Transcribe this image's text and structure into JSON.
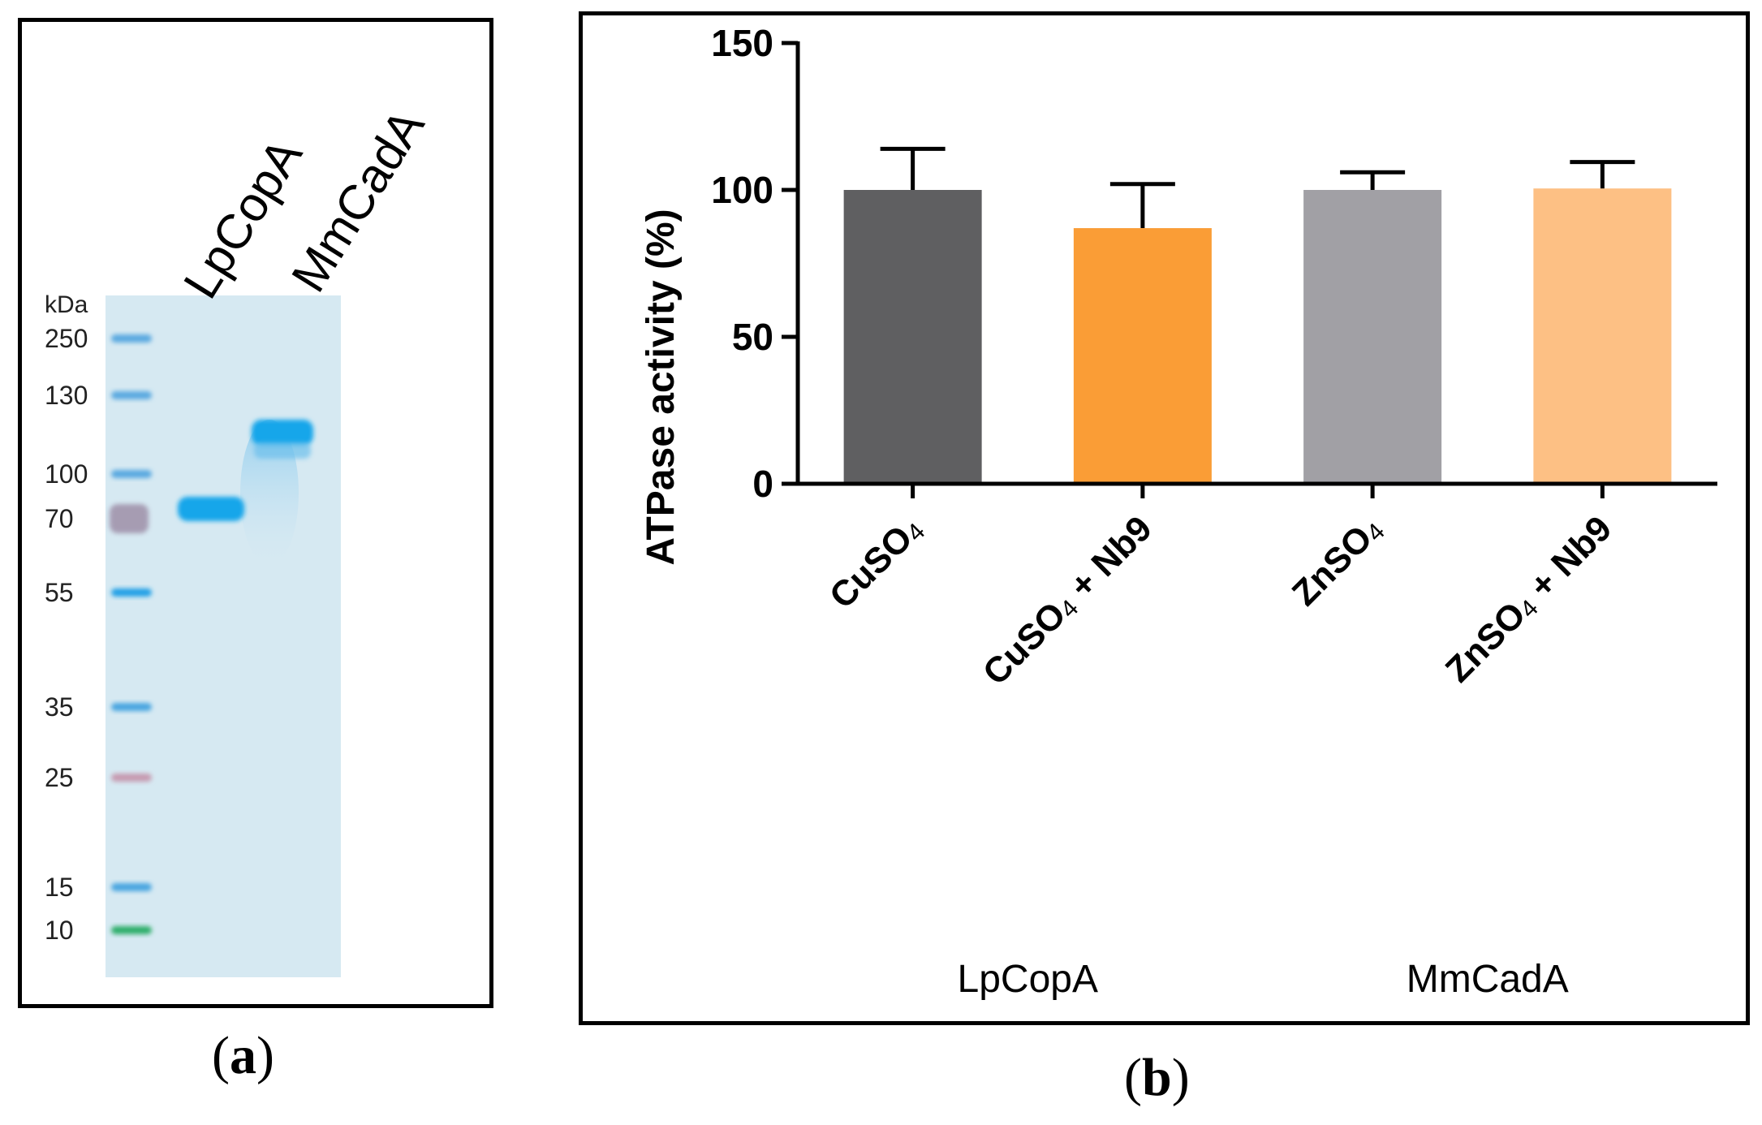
{
  "panel_a": {
    "caption_open": "(",
    "caption_letter": "a",
    "caption_close": ")",
    "lane_labels": [
      "LpCopA",
      "MmCadA"
    ],
    "ladder_unit": "kDa",
    "ladder_markers": [
      {
        "label": "250",
        "color": "#5aa9e0"
      },
      {
        "label": "130",
        "color": "#5aa9e0"
      },
      {
        "label": "100",
        "color": "#5aa9e0"
      },
      {
        "label": "70",
        "color": "#9e8fa8"
      },
      {
        "label": "55",
        "color": "#20a0e6"
      },
      {
        "label": "35",
        "color": "#4aa6e0"
      },
      {
        "label": "25",
        "color": "#c69ab0"
      },
      {
        "label": "15",
        "color": "#4aa6e0"
      },
      {
        "label": "10",
        "color": "#2fae6a"
      }
    ],
    "gel_background": "#d6e9f2",
    "band_color": "#12a6ea"
  },
  "panel_b": {
    "caption_open": "(",
    "caption_letter": "b",
    "caption_close": ")",
    "chart_data": {
      "type": "bar",
      "title": "",
      "ylabel": "ATPase activity (%)",
      "xlabel": "",
      "ylim": [
        0,
        150
      ],
      "yticks": [
        "0",
        "50",
        "100",
        "150"
      ],
      "categories": [
        {
          "base": "CuSO",
          "sub": "4",
          "suffix": ""
        },
        {
          "base": "CuSO",
          "sub": "4",
          "suffix": " + Nb9"
        },
        {
          "base": "ZnSO",
          "sub": "4",
          "suffix": ""
        },
        {
          "base": "ZnSO",
          "sub": "4",
          "suffix": " + Nb9"
        }
      ],
      "values": [
        100,
        87,
        100,
        100.5
      ],
      "errors": [
        14,
        15,
        6,
        9
      ],
      "colors": [
        "#5f5f61",
        "#fa9d36",
        "#a1a0a5",
        "#fdc084"
      ],
      "groups": [
        "LpCopA",
        "MmCadA"
      ]
    }
  }
}
